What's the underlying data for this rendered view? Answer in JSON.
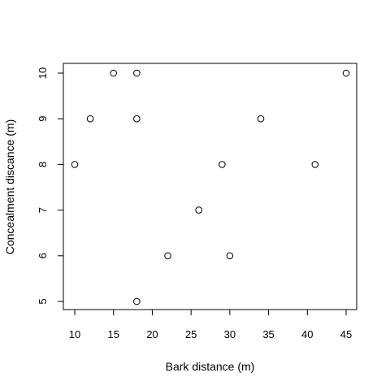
{
  "chart_data": {
    "type": "scatter",
    "title": "",
    "xlabel": "Bark distance (m)",
    "ylabel": "Concealment discance (m)",
    "xlim": [
      10,
      45
    ],
    "ylim": [
      5,
      10
    ],
    "x_ticks": [
      10,
      15,
      20,
      25,
      30,
      35,
      40,
      45
    ],
    "y_ticks": [
      5,
      6,
      7,
      8,
      9,
      10
    ],
    "grid": false,
    "legend": "none",
    "marker": "open-circle",
    "points": [
      {
        "x": 10,
        "y": 8
      },
      {
        "x": 12,
        "y": 9
      },
      {
        "x": 15,
        "y": 10
      },
      {
        "x": 18,
        "y": 10
      },
      {
        "x": 18,
        "y": 9
      },
      {
        "x": 18,
        "y": 5
      },
      {
        "x": 22,
        "y": 6
      },
      {
        "x": 26,
        "y": 7
      },
      {
        "x": 29,
        "y": 8
      },
      {
        "x": 30,
        "y": 6
      },
      {
        "x": 34,
        "y": 9
      },
      {
        "x": 41,
        "y": 8
      },
      {
        "x": 45,
        "y": 10
      }
    ]
  }
}
